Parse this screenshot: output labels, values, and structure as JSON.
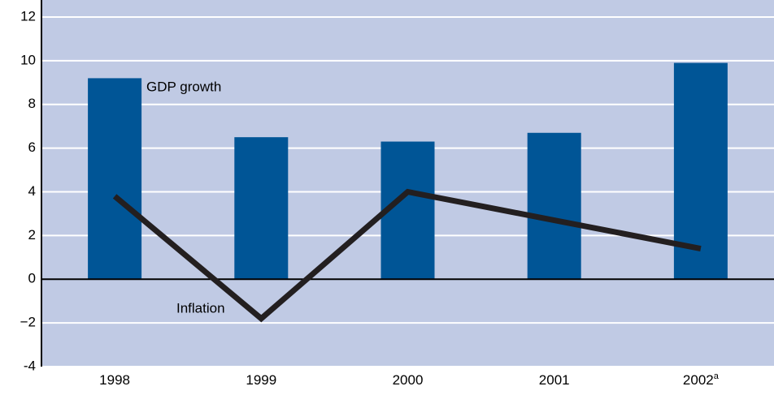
{
  "chart_data": {
    "type": "bar_line",
    "categories": [
      "1998",
      "1999",
      "2000",
      "2001",
      "2002"
    ],
    "category_superscripts": [
      null,
      null,
      null,
      null,
      "a"
    ],
    "series": [
      {
        "name": "GDP growth",
        "type": "bar",
        "color": "#005596",
        "values": [
          9.2,
          6.5,
          6.3,
          6.7,
          9.9
        ]
      },
      {
        "name": "Inflation",
        "type": "line",
        "color": "#231f20",
        "values": [
          3.8,
          -1.8,
          4.0,
          2.7,
          1.4
        ]
      }
    ],
    "ylim": [
      -4,
      12
    ],
    "yticks": [
      -4,
      {
        "value": -2,
        "label": "−2"
      },
      0,
      2,
      4,
      6,
      8,
      10,
      12
    ],
    "grid": true,
    "background": "#c0cae4"
  }
}
